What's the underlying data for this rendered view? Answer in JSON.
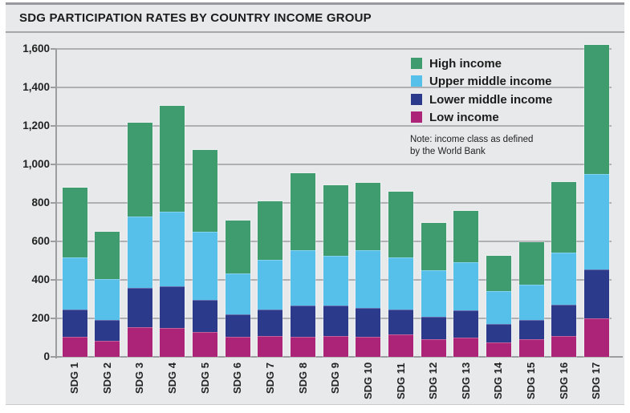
{
  "panel": {
    "title": "SDG PARTICIPATION RATES BY COUNTRY INCOME GROUP"
  },
  "note": {
    "line1": "Note: income class as defined",
    "line2": "by the World Bank"
  },
  "legend": {
    "position": "top-right",
    "items_top_to_bottom": [
      "High income",
      "Upper middle income",
      "Lower middle income",
      "Low income"
    ]
  },
  "chart_data": {
    "type": "bar",
    "stacked": true,
    "title": "SDG PARTICIPATION RATES BY COUNTRY INCOME GROUP",
    "xlabel": "",
    "ylabel": "",
    "ylim": [
      0,
      1600
    ],
    "ytick_step": 200,
    "yticks": [
      "0",
      "200",
      "400",
      "600",
      "800",
      "1,000",
      "1,200",
      "1,400",
      "1,600"
    ],
    "grid": true,
    "categories": [
      "SDG 1",
      "SDG 2",
      "SDG 3",
      "SDG 4",
      "SDG 5",
      "SDG 6",
      "SDG 7",
      "SDG 8",
      "SDG 9",
      "SDG 10",
      "SDG 11",
      "SDG 12",
      "SDG 13",
      "SDG 14",
      "SDG 15",
      "SDG 16",
      "SDG 17"
    ],
    "series": [
      {
        "name": "Low income",
        "color": "#ac2478",
        "values": [
          105,
          85,
          155,
          150,
          130,
          105,
          110,
          105,
          110,
          105,
          115,
          90,
          100,
          75,
          90,
          110,
          200
        ]
      },
      {
        "name": "Lower middle income",
        "color": "#2c3a8c",
        "values": [
          140,
          105,
          205,
          215,
          165,
          115,
          135,
          160,
          155,
          150,
          130,
          120,
          140,
          95,
          100,
          160,
          255
        ]
      },
      {
        "name": "Upper middle income",
        "color": "#56bfea",
        "values": [
          270,
          215,
          370,
          390,
          355,
          215,
          260,
          290,
          260,
          300,
          270,
          240,
          250,
          170,
          185,
          270,
          495
        ]
      },
      {
        "name": "High income",
        "color": "#3f9c6f",
        "values": [
          365,
          245,
          485,
          550,
          425,
          275,
          305,
          400,
          365,
          350,
          345,
          245,
          270,
          185,
          220,
          370,
          670
        ]
      }
    ],
    "totals": [
      880,
      650,
      1215,
      1305,
      1075,
      710,
      810,
      955,
      890,
      905,
      860,
      695,
      760,
      525,
      595,
      910,
      1620
    ]
  }
}
